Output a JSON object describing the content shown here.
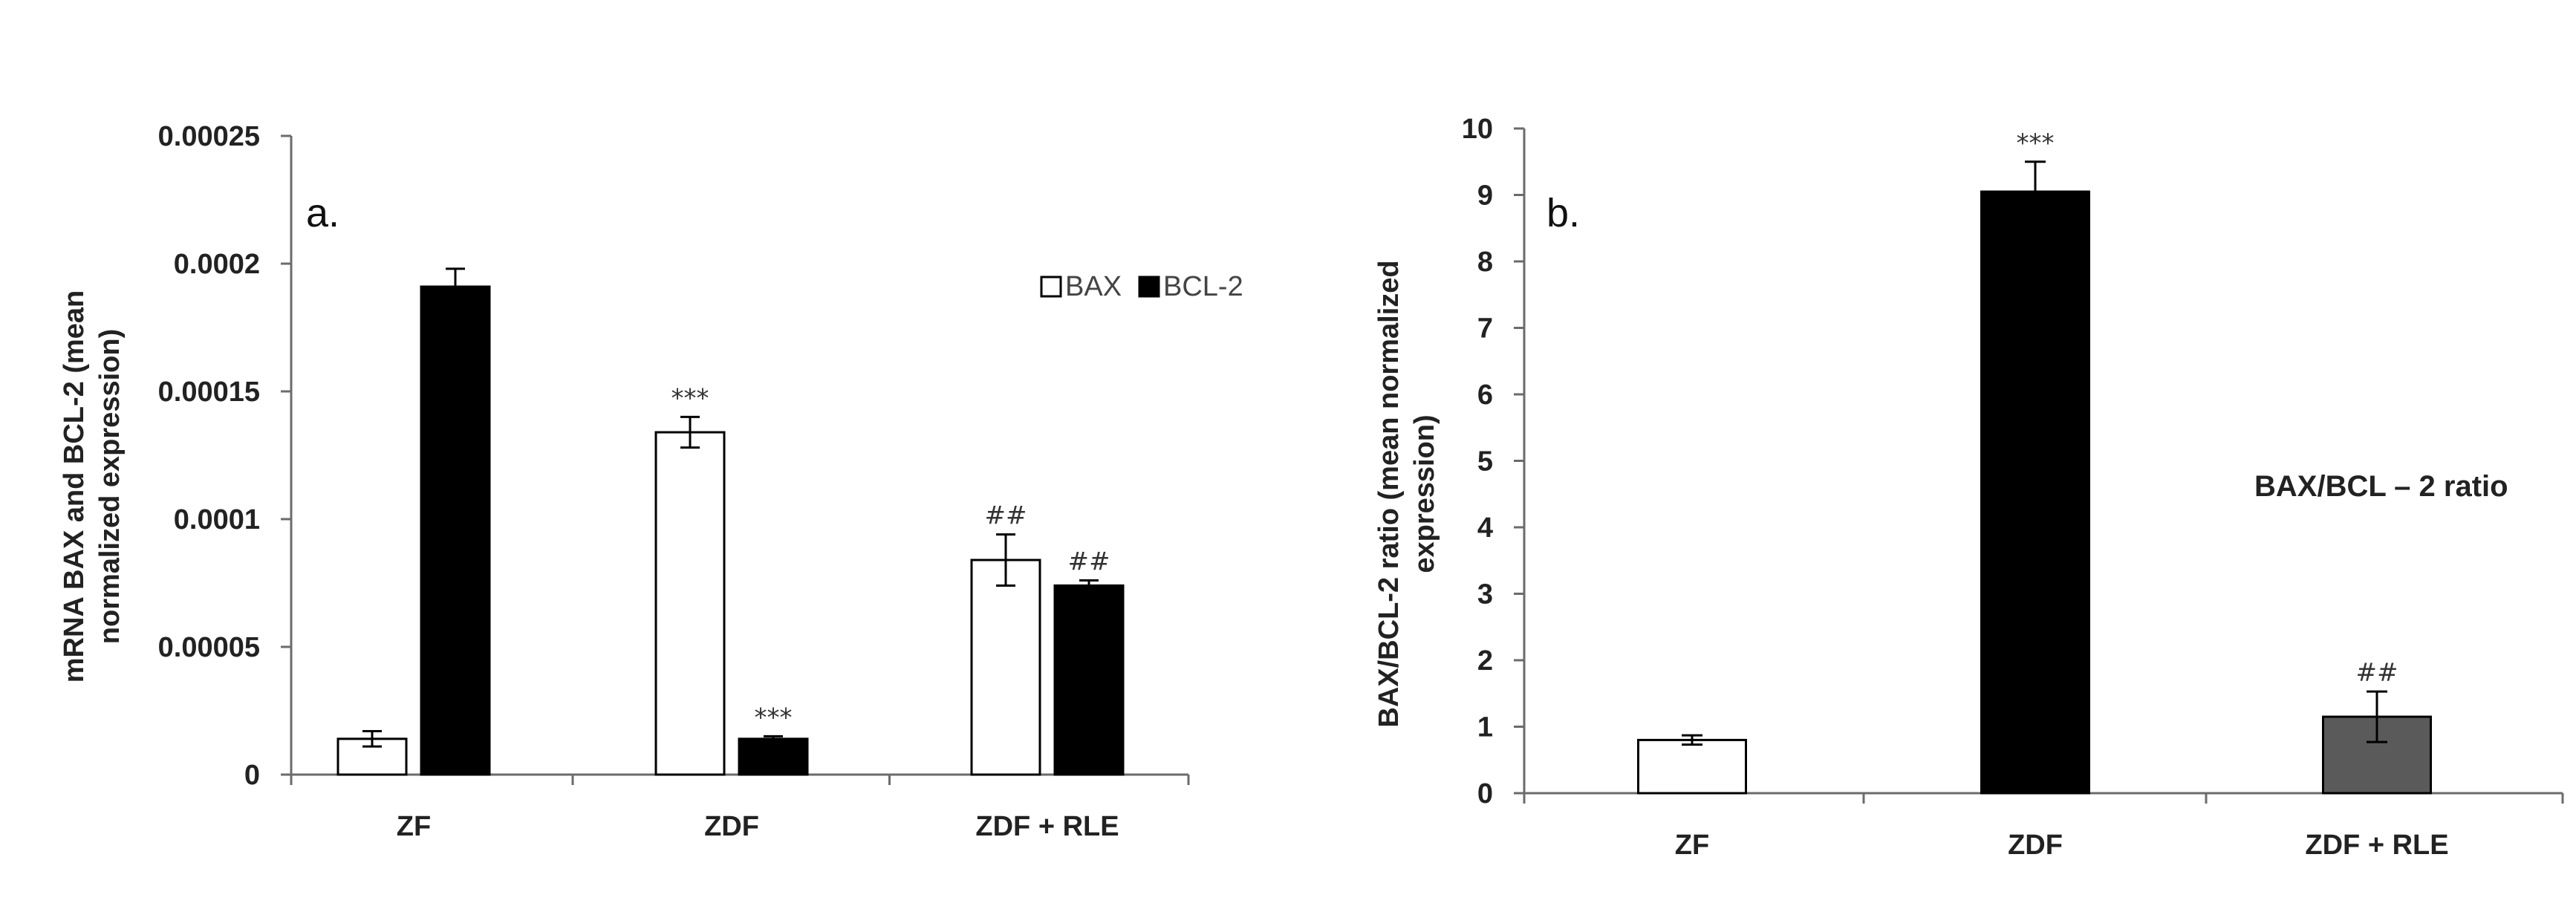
{
  "chart_data": [
    {
      "type": "bar",
      "panel_label": "a.",
      "categories": [
        "ZF",
        "ZDF",
        "ZDF + RLE"
      ],
      "ylabel_lines": [
        "mRNA BAX and BCL-2 (mean",
        "normalized expression)"
      ],
      "ylim": [
        0,
        0.00025
      ],
      "yticks": [
        0,
        5e-05,
        0.0001,
        0.00015,
        0.0002,
        0.00025
      ],
      "ytick_labels": [
        "0",
        "0.00005",
        "0.0001",
        "0.00015",
        "0.0002",
        "0.00025"
      ],
      "grid": false,
      "legend_position": "top-right",
      "series": [
        {
          "name": "BAX",
          "color": "#ffffff",
          "values": [
            1.4e-05,
            0.000134,
            8.4e-05
          ],
          "errors": [
            3e-06,
            6e-06,
            1e-05
          ],
          "annotations": [
            "",
            "***",
            "##"
          ]
        },
        {
          "name": "BCL-2",
          "color": "#000000",
          "values": [
            0.000191,
            1.4e-05,
            7.4e-05
          ],
          "errors": [
            7e-06,
            1e-06,
            2e-06
          ],
          "annotations": [
            "",
            "***",
            "##"
          ]
        }
      ]
    },
    {
      "type": "bar",
      "panel_label": "b.",
      "categories": [
        "ZF",
        "ZDF",
        "ZDF + RLE"
      ],
      "ylabel_lines": [
        "BAX/BCL-2 ratio (mean normalized",
        "expression)"
      ],
      "ylim": [
        0,
        10
      ],
      "yticks": [
        0,
        1,
        2,
        3,
        4,
        5,
        6,
        7,
        8,
        9,
        10
      ],
      "ytick_labels": [
        "0",
        "1",
        "2",
        "3",
        "4",
        "5",
        "6",
        "7",
        "8",
        "9",
        "10"
      ],
      "grid": false,
      "inline_label": "BAX/BCL – 2 ratio",
      "series": [
        {
          "name": "BAX/BCL – 2 ratio",
          "values": [
            0.8,
            9.05,
            1.15
          ],
          "errors": [
            0.07,
            0.45,
            0.38
          ],
          "colors": [
            "#ffffff",
            "#000000",
            "#5a5a5a"
          ],
          "annotations": [
            "",
            "***",
            "##"
          ]
        }
      ]
    }
  ]
}
